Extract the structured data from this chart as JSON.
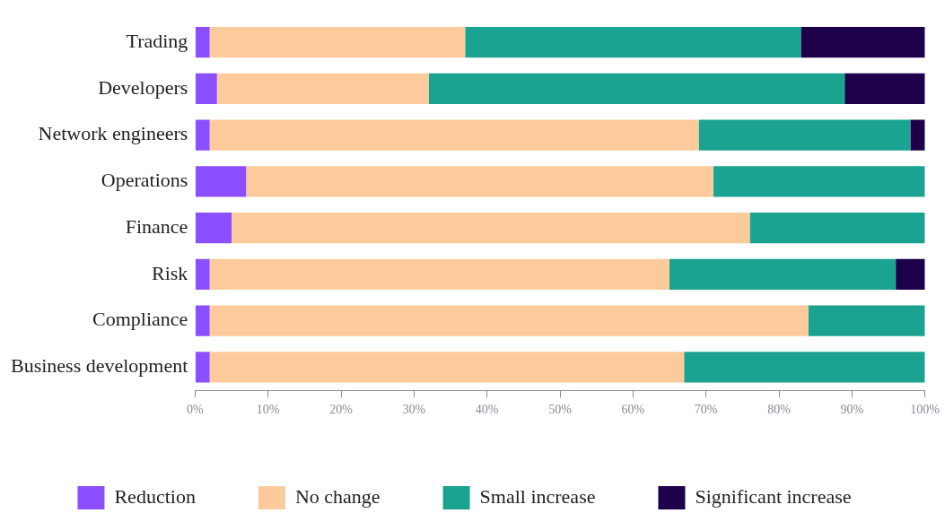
{
  "chart_data": {
    "type": "bar",
    "orientation": "horizontal",
    "stacked": true,
    "grid": false,
    "legend": "bottom",
    "categories": [
      "Trading",
      "Developers",
      "Network engineers",
      "Operations",
      "Finance",
      "Risk",
      "Compliance",
      "Business development"
    ],
    "series": [
      {
        "name": "Reduction",
        "color": "#8c4fff",
        "values": [
          2,
          3,
          2,
          7,
          5,
          2,
          2,
          2
        ]
      },
      {
        "name": "No change",
        "color": "#fdcb9b",
        "values": [
          35,
          29,
          67,
          64,
          71,
          63,
          82,
          65
        ]
      },
      {
        "name": "Small increase",
        "color": "#1aa391",
        "values": [
          46,
          57,
          29,
          29,
          24,
          31,
          16,
          33
        ]
      },
      {
        "name": "Significant increase",
        "color": "#1d0049",
        "values": [
          17,
          11,
          2,
          0,
          0,
          4,
          0,
          0
        ]
      }
    ],
    "xlim": [
      0,
      100
    ],
    "xticks": [
      {
        "value": 0,
        "label": "0%"
      },
      {
        "value": 10,
        "label": "10%"
      },
      {
        "value": 20,
        "label": "20%"
      },
      {
        "value": 30,
        "label": "30%"
      },
      {
        "value": 40,
        "label": "40%"
      },
      {
        "value": 50,
        "label": "50%"
      },
      {
        "value": 60,
        "label": "60%"
      },
      {
        "value": 70,
        "label": "70%"
      },
      {
        "value": 80,
        "label": "80%"
      },
      {
        "value": 90,
        "label": "90%"
      },
      {
        "value": 100,
        "label": "100%"
      }
    ]
  }
}
